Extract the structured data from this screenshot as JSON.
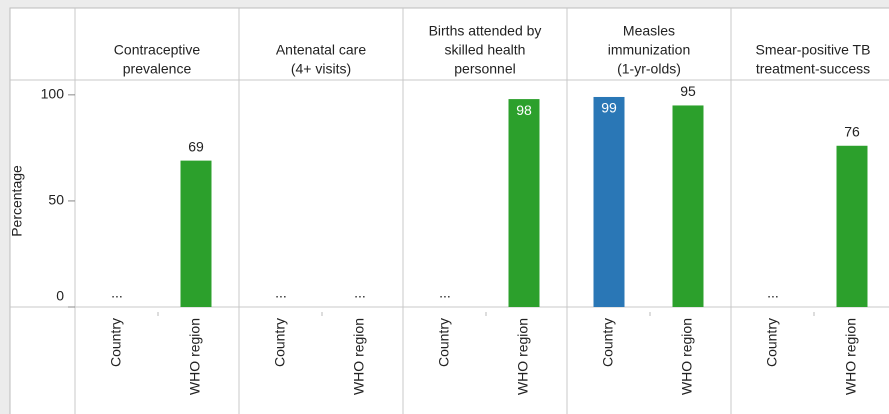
{
  "chart_data": {
    "type": "bar",
    "y_label": "Percentage",
    "ylim": [
      0,
      107
    ],
    "yticks": [
      0,
      50,
      100
    ],
    "categories": [
      "Country",
      "WHO region"
    ],
    "colors": [
      "#2a77b6",
      "#2ca02c"
    ],
    "panels": [
      {
        "title": [
          "Contraceptive",
          "prevalence"
        ],
        "values": [
          null,
          69
        ],
        "value_labels": [
          "...",
          "69"
        ]
      },
      {
        "title": [
          "Antenatal care",
          "(4+ visits)"
        ],
        "values": [
          null,
          null
        ],
        "value_labels": [
          "...",
          "..."
        ]
      },
      {
        "title": [
          "Births attended by",
          "skilled health",
          "personnel"
        ],
        "values": [
          null,
          98
        ],
        "value_labels": [
          "...",
          "98"
        ]
      },
      {
        "title": [
          "Measles",
          "immunization",
          "(1-yr-olds)"
        ],
        "values": [
          99,
          95
        ],
        "value_labels": [
          "99",
          "95"
        ]
      },
      {
        "title": [
          "Smear-positive TB",
          "treatment-success"
        ],
        "values": [
          null,
          76
        ],
        "value_labels": [
          "...",
          "76"
        ]
      }
    ]
  }
}
